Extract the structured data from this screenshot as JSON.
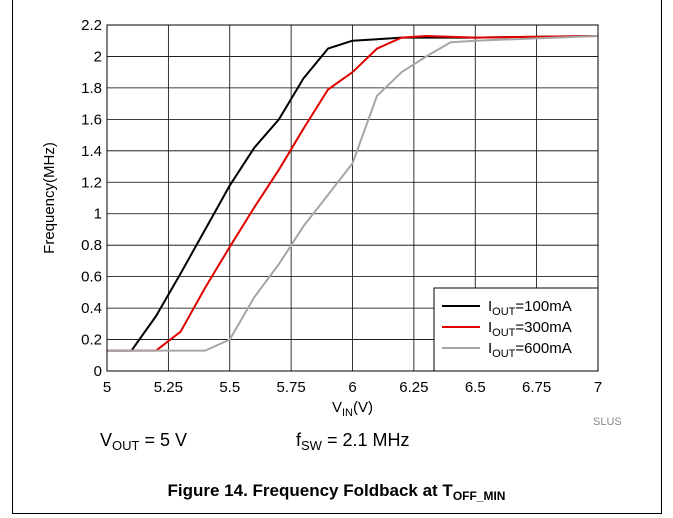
{
  "chart_data": {
    "type": "line",
    "xlabel_main": "V",
    "xlabel_sub": "IN",
    "xlabel_tail": "(V)",
    "ylabel": "Frequency(MHz)",
    "xlim": [
      5,
      7
    ],
    "ylim": [
      0,
      2.2
    ],
    "xticks": [
      "5",
      "5.25",
      "5.5",
      "5.75",
      "6",
      "6.25",
      "6.5",
      "6.75",
      "7"
    ],
    "yticks": [
      "0",
      "0.2",
      "0.4",
      "0.6",
      "0.8",
      "1",
      "1.2",
      "1.4",
      "1.6",
      "1.8",
      "2",
      "2.2"
    ],
    "grid": true,
    "legend_position": "bottom-right",
    "series": [
      {
        "name_main": "I",
        "name_sub": "OUT",
        "name_tail": "=100mA",
        "color": "#000000",
        "x": [
          5.0,
          5.1,
          5.2,
          5.3,
          5.4,
          5.5,
          5.6,
          5.7,
          5.8,
          5.9,
          6.0,
          6.1,
          6.2,
          6.3,
          6.5,
          7.0
        ],
        "y": [
          0.13,
          0.13,
          0.35,
          0.62,
          0.9,
          1.18,
          1.42,
          1.6,
          1.86,
          2.05,
          2.1,
          2.11,
          2.12,
          2.12,
          2.12,
          2.13
        ]
      },
      {
        "name_main": "I",
        "name_sub": "OUT",
        "name_tail": "=300mA",
        "color": "#e00000",
        "x": [
          5.0,
          5.2,
          5.3,
          5.4,
          5.5,
          5.6,
          5.7,
          5.8,
          5.9,
          6.0,
          6.1,
          6.2,
          6.3,
          6.5,
          7.0
        ],
        "y": [
          0.13,
          0.13,
          0.25,
          0.53,
          0.79,
          1.04,
          1.28,
          1.54,
          1.79,
          1.9,
          2.05,
          2.12,
          2.13,
          2.12,
          2.13
        ]
      },
      {
        "name_main": "I",
        "name_sub": "OUT",
        "name_tail": "=600mA",
        "color": "#a6a6a6",
        "x": [
          5.0,
          5.4,
          5.5,
          5.6,
          5.7,
          5.8,
          5.9,
          6.0,
          6.1,
          6.2,
          6.3,
          6.4,
          6.5,
          7.0
        ],
        "y": [
          0.13,
          0.13,
          0.2,
          0.47,
          0.68,
          0.92,
          1.12,
          1.32,
          1.75,
          1.9,
          2.0,
          2.09,
          2.1,
          2.13
        ]
      }
    ]
  },
  "conditions": {
    "vout_main": "V",
    "vout_sub": "OUT",
    "vout_tail": " = 5 V",
    "fsw_main": "f",
    "fsw_sub": "SW",
    "fsw_tail": " = 2.1 MHz"
  },
  "watermark": "SLUS",
  "caption": {
    "main": "Figure 14. Frequency Foldback at T",
    "sub": "OFF_MIN"
  }
}
